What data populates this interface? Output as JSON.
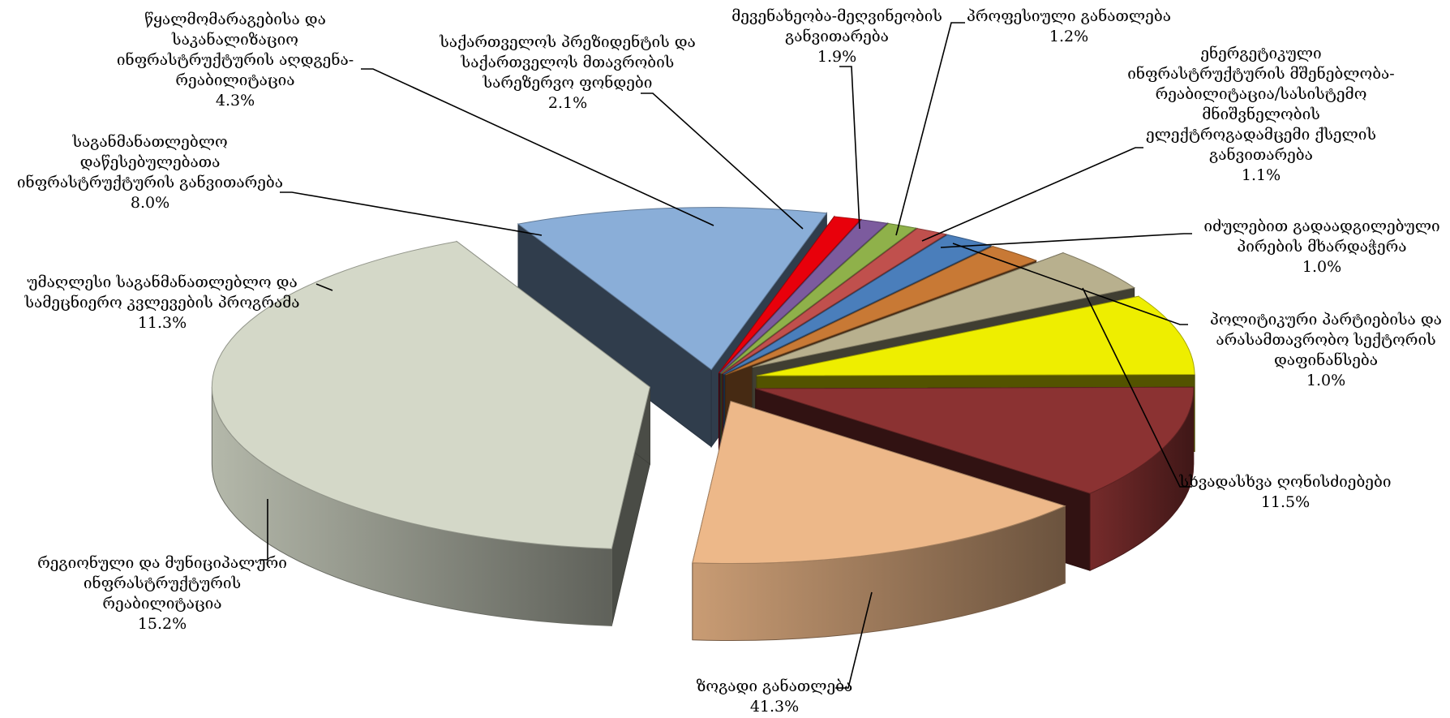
{
  "chart_data": {
    "type": "pie",
    "title": "",
    "legend": "none",
    "slices": [
      {
        "label": "ზოგადი განათლება",
        "value": 41.3,
        "value_label": "41.3%",
        "color": "#d4d8c8"
      },
      {
        "label": "სხვადასხვა ღონისძიებები",
        "value": 11.5,
        "value_label": "11.5%",
        "color": "#8aaed8"
      },
      {
        "label": "პოლიტიკური პარტიებისა და არასამთავრობო სექტორის დაფინანსება",
        "value": 1.0,
        "value_label": "1.0%",
        "color": "#e8000b"
      },
      {
        "label": "იძულებით გადაადგილებული პირების მხარდაჭერა",
        "value": 1.0,
        "value_label": "1.0%",
        "color": "#7c5b9e"
      },
      {
        "label": "ენერგეტიკული ინფრასტრუქტურის მშენებლობა-რეაბილიტაცია/სასისტემო მნიშვნელობის ელექტროგადამცემი ქსელის განვითარება",
        "value": 1.1,
        "value_label": "1.1%",
        "color": "#8fb14a"
      },
      {
        "label": "პროფესიული განათლება",
        "value": 1.2,
        "value_label": "1.2%",
        "color": "#c0504d"
      },
      {
        "label": "მევენახეობა-მეღვინეობის განვითარება",
        "value": 1.9,
        "value_label": "1.9%",
        "color": "#4a7ebb"
      },
      {
        "label": "საქართველოს პრეზიდენტის და საქართველოს მთავრობის სარეზერვო ფონდები",
        "value": 2.1,
        "value_label": "2.1%",
        "color": "#c87935"
      },
      {
        "label": "წყალმომარაგებისა და საკანალიზაციო ინფრასტრუქტურის აღდგენა-რეაბილიტაცია",
        "value": 4.3,
        "value_label": "4.3%",
        "color": "#b8b08e"
      },
      {
        "label": "საგანმანათლებლო დაწესებულებათა ინფრასტრუქტურის განვითარება",
        "value": 8.0,
        "value_label": "8.0%",
        "color": "#eeee00"
      },
      {
        "label": "უმაღლესი საგანმანათლებლო და სამეცნიერო კვლევების პროგრამა",
        "value": 11.3,
        "value_label": "11.3%",
        "color": "#8b3232"
      },
      {
        "label": "რეგიონული და მუნიციპალური ინფრასტრუქტურის რეაბილიტაცია",
        "value": 15.2,
        "value_label": "15.2%",
        "color": "#edb889"
      }
    ],
    "display_lines": [
      [
        "ზოგადი განათლება"
      ],
      [
        "სხვადასხვა ღონისძიებები"
      ],
      [
        "პოლიტიკური პარტიებისა და",
        "არასამთავრობო სექტორის",
        "დაფინანსება"
      ],
      [
        "იძულებით გადაადგილებული",
        "პირების მხარდაჭერა"
      ],
      [
        "ენერგეტიკული",
        "ინფრასტრუქტურის მშენებლობა-",
        "რეაბილიტაცია/სასისტემო",
        "მნიშვნელობის",
        "ელექტროგადამცემი ქსელის",
        "განვითარება"
      ],
      [
        "პროფესიული განათლება"
      ],
      [
        "მევენახეობა-მეღვინეობის",
        "განვითარება"
      ],
      [
        "საქართველოს პრეზიდენტის და",
        "საქართველოს მთავრობის",
        "სარეზერვო ფონდები"
      ],
      [
        "წყალმომარაგებისა და",
        "საკანალიზაციო",
        "ინფრასტრუქტურის აღდგენა-",
        "რეაბილიტაცია"
      ],
      [
        "საგანმანათლებლო",
        "დაწესებულებათა",
        "ინფრასტრუქტურის განვითარება"
      ],
      [
        "უმაღლესი საგანმანათლებლო და",
        "სამეცნიერო კვლევების პროგრამა"
      ],
      [
        "რეგიონული და მუნიციპალური",
        "ინფრასტრუქტურის",
        "რეაბილიტაცია"
      ]
    ]
  }
}
